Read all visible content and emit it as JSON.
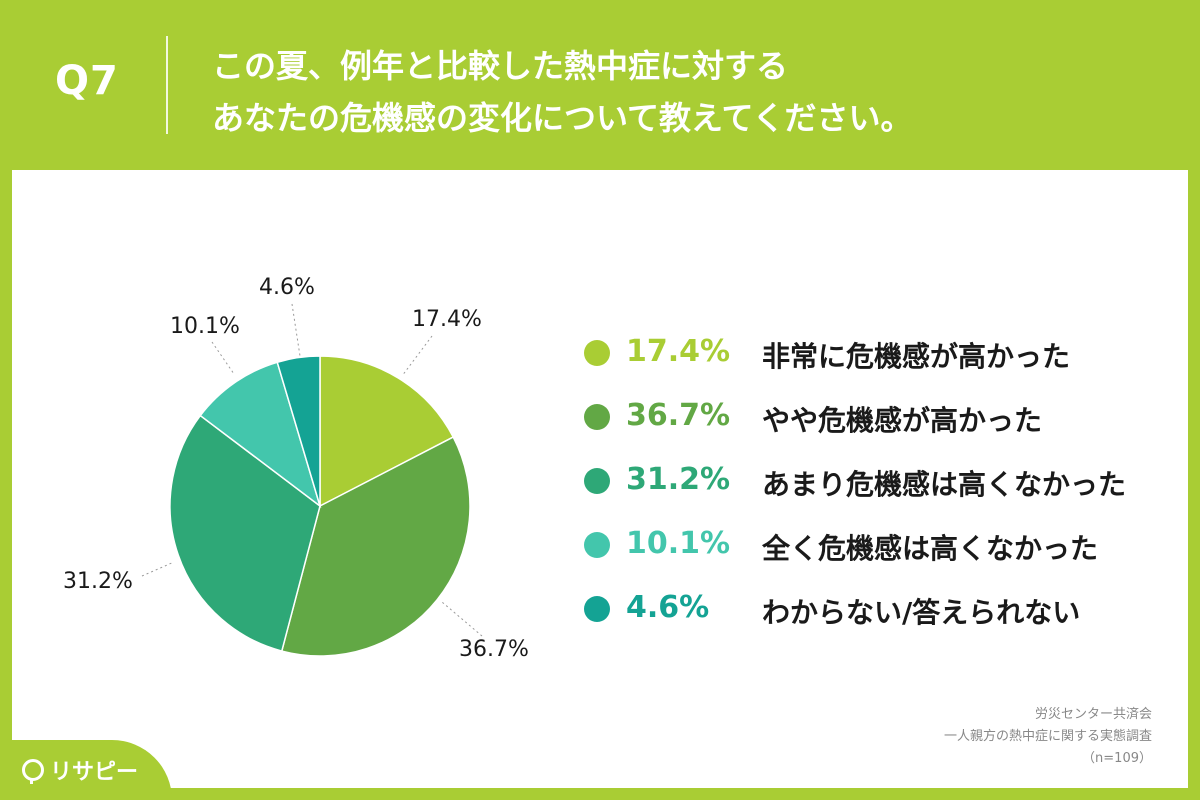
{
  "header": {
    "q_number": "Q7",
    "title_line1": "この夏、例年と比較した熱中症に対する",
    "title_line2": "あなたの危機感の変化について教えてください。"
  },
  "chart_data": {
    "type": "pie",
    "start_angle": "12 o'clock, clockwise",
    "slices": [
      {
        "label": "非常に危機感が高かった",
        "value": 17.4,
        "display": "17.4%",
        "color": "#a9cd34"
      },
      {
        "label": "やや危機感が高かった",
        "value": 36.7,
        "display": "36.7%",
        "color": "#62a845"
      },
      {
        "label": "あまり危機感は高くなかった",
        "value": 31.2,
        "display": "31.2%",
        "color": "#2ea877"
      },
      {
        "label": "全く危機感は高くなかった",
        "value": 10.1,
        "display": "10.1%",
        "color": "#43c6ac"
      },
      {
        "label": "わからない/答えられない",
        "value": 4.6,
        "display": "4.6%",
        "color": "#14a394"
      }
    ]
  },
  "source": {
    "line1": "労災センター共済会",
    "line2": "一人親方の熱中症に関する実態調査",
    "line3": "（n=109）"
  },
  "logo": {
    "text": "リサピー"
  }
}
